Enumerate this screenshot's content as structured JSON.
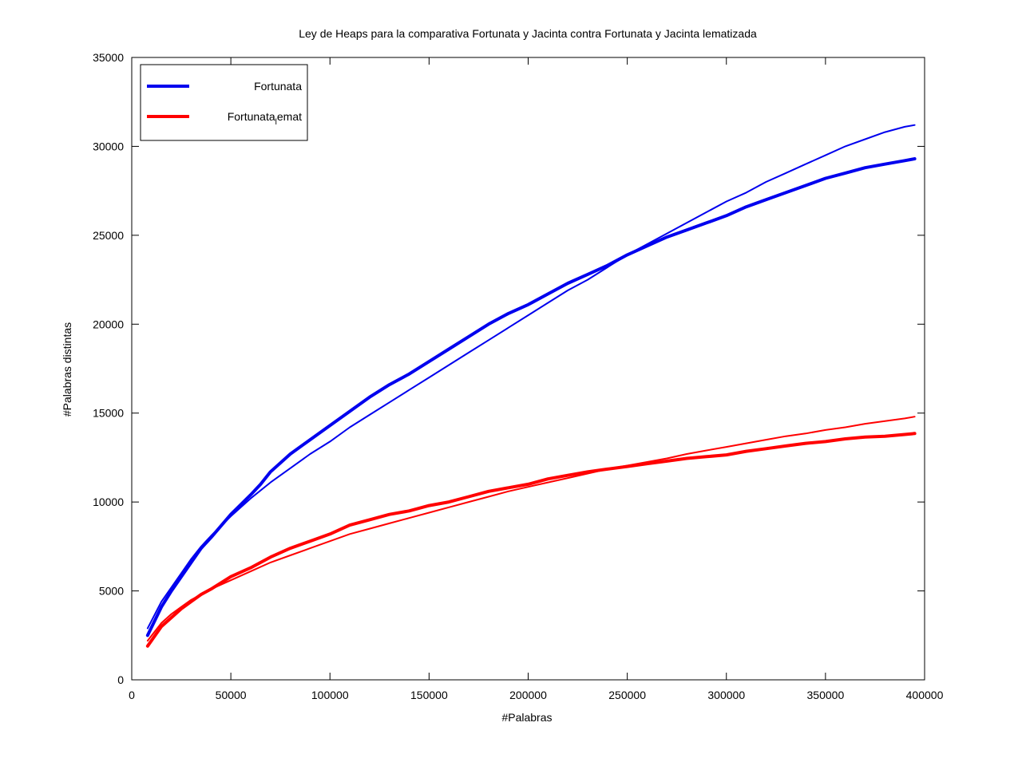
{
  "chart_data": {
    "type": "line",
    "title": "Ley de Heaps para la comparativa Fortunata y Jacinta contra Fortunata y Jacinta lematizada",
    "xlabel": "#Palabras",
    "ylabel": "#Palabras distintas",
    "xlim": [
      0,
      400000
    ],
    "ylim": [
      0,
      35000
    ],
    "xticks": [
      "0",
      "50000",
      "100000",
      "150000",
      "200000",
      "250000",
      "300000",
      "350000",
      "400000"
    ],
    "yticks": [
      "0",
      "5000",
      "10000",
      "15000",
      "20000",
      "25000",
      "30000",
      "35000"
    ],
    "grid": false,
    "legend_position": "top-left",
    "legend": [
      {
        "label": "Fortunata",
        "color": "#0000ee"
      },
      {
        "label_main": "Fortunata",
        "label_sub": "l",
        "label_tail": "emat",
        "color": "#ff0000"
      }
    ],
    "series": [
      {
        "name": "Fortunata",
        "color": "#0000ee",
        "style": "thick",
        "x": [
          8000,
          15000,
          20000,
          25000,
          30000,
          35000,
          40000,
          50000,
          60000,
          65000,
          70000,
          80000,
          90000,
          100000,
          110000,
          120000,
          130000,
          140000,
          150000,
          160000,
          170000,
          180000,
          190000,
          200000,
          210000,
          220000,
          230000,
          240000,
          250000,
          260000,
          270000,
          280000,
          290000,
          300000,
          310000,
          320000,
          330000,
          340000,
          350000,
          360000,
          370000,
          380000,
          390000,
          395000
        ],
        "values": [
          2500,
          4100,
          5000,
          5800,
          6600,
          7400,
          8000,
          9300,
          10400,
          11000,
          11700,
          12700,
          13500,
          14300,
          15100,
          15900,
          16600,
          17200,
          17900,
          18600,
          19300,
          20000,
          20600,
          21100,
          21700,
          22300,
          22800,
          23300,
          23900,
          24400,
          24900,
          25300,
          25700,
          26100,
          26600,
          27000,
          27400,
          27800,
          28200,
          28500,
          28800,
          29000,
          29200,
          29300
        ]
      },
      {
        "name": "Fortunata",
        "color": "#0000ee",
        "style": "thin",
        "x": [
          8000,
          15000,
          20000,
          25000,
          30000,
          35000,
          40000,
          50000,
          60000,
          70000,
          80000,
          90000,
          100000,
          110000,
          120000,
          130000,
          140000,
          150000,
          160000,
          170000,
          180000,
          190000,
          200000,
          210000,
          220000,
          230000,
          240000,
          250000,
          260000,
          270000,
          280000,
          290000,
          300000,
          310000,
          320000,
          330000,
          340000,
          350000,
          360000,
          370000,
          380000,
          390000,
          395000
        ],
        "values": [
          2900,
          4400,
          5200,
          6000,
          6800,
          7500,
          8100,
          9200,
          10200,
          11100,
          11900,
          12700,
          13400,
          14200,
          14900,
          15600,
          16300,
          17000,
          17700,
          18400,
          19100,
          19800,
          20500,
          21200,
          21900,
          22500,
          23200,
          23900,
          24500,
          25100,
          25700,
          26300,
          26900,
          27400,
          28000,
          28500,
          29000,
          29500,
          30000,
          30400,
          30800,
          31100,
          31200
        ]
      },
      {
        "name": "Fortunata lemat",
        "color": "#ff0000",
        "style": "thick",
        "x": [
          8000,
          15000,
          20000,
          25000,
          30000,
          35000,
          40000,
          50000,
          60000,
          70000,
          80000,
          90000,
          100000,
          110000,
          120000,
          130000,
          140000,
          150000,
          160000,
          170000,
          180000,
          190000,
          200000,
          210000,
          220000,
          230000,
          240000,
          250000,
          260000,
          270000,
          280000,
          290000,
          300000,
          310000,
          320000,
          330000,
          340000,
          350000,
          360000,
          370000,
          380000,
          390000,
          395000
        ],
        "values": [
          1900,
          3000,
          3500,
          4000,
          4400,
          4800,
          5100,
          5800,
          6300,
          6900,
          7400,
          7800,
          8200,
          8700,
          9000,
          9300,
          9500,
          9800,
          10000,
          10300,
          10600,
          10800,
          11000,
          11300,
          11500,
          11700,
          11850,
          12000,
          12150,
          12300,
          12450,
          12550,
          12650,
          12850,
          13000,
          13150,
          13300,
          13400,
          13550,
          13650,
          13700,
          13800,
          13850
        ]
      },
      {
        "name": "Fortunata lemat",
        "color": "#ff0000",
        "style": "thin",
        "x": [
          8000,
          15000,
          20000,
          25000,
          30000,
          35000,
          40000,
          50000,
          60000,
          70000,
          80000,
          90000,
          100000,
          110000,
          120000,
          130000,
          140000,
          150000,
          160000,
          170000,
          180000,
          190000,
          200000,
          210000,
          220000,
          230000,
          240000,
          250000,
          260000,
          270000,
          280000,
          290000,
          300000,
          310000,
          320000,
          330000,
          340000,
          350000,
          360000,
          370000,
          380000,
          390000,
          395000
        ],
        "values": [
          2200,
          3200,
          3700,
          4100,
          4500,
          4800,
          5100,
          5600,
          6100,
          6600,
          7000,
          7400,
          7800,
          8200,
          8500,
          8800,
          9100,
          9400,
          9700,
          10000,
          10300,
          10600,
          10850,
          11100,
          11350,
          11600,
          11850,
          12050,
          12250,
          12450,
          12700,
          12900,
          13100,
          13300,
          13500,
          13700,
          13850,
          14050,
          14200,
          14400,
          14550,
          14700,
          14800
        ]
      }
    ]
  }
}
